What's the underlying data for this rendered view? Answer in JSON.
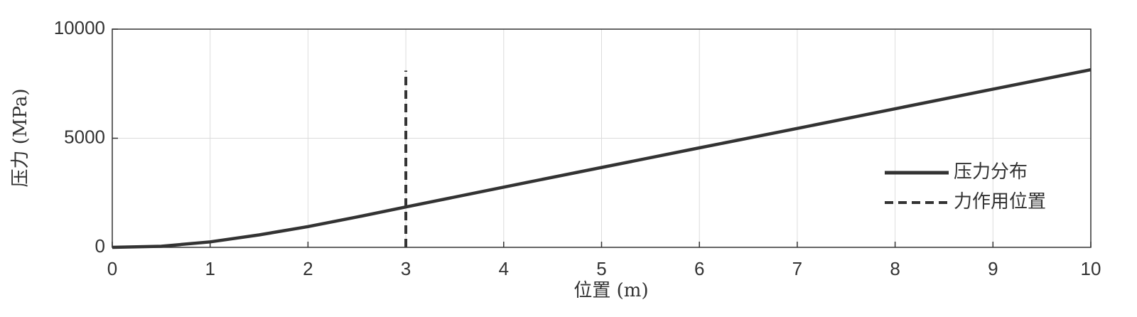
{
  "chart_data": {
    "type": "line",
    "xlabel": "位置 (m)",
    "ylabel": "压力  (MPa)",
    "xlim": [
      0,
      10
    ],
    "xticks": [
      0,
      1,
      2,
      3,
      4,
      5,
      6,
      7,
      8,
      9,
      10
    ],
    "ylim": [
      0,
      10000
    ],
    "yticks": [
      0,
      5000,
      10000
    ],
    "grid": true,
    "legend": "right",
    "series": [
      {
        "name": "压力分布",
        "color": "#333333",
        "dash": false,
        "x": [
          0,
          0.5,
          1,
          1.5,
          2,
          2.5,
          3,
          4,
          5,
          6,
          7,
          8,
          9,
          10
        ],
        "values": [
          0,
          50,
          250,
          570,
          950,
          1390,
          1850,
          2760,
          3660,
          4560,
          5450,
          6350,
          7250,
          8140
        ]
      },
      {
        "name": "力作用位置",
        "color": "#333333",
        "dash": true,
        "x": [
          3,
          3
        ],
        "values": [
          0,
          8100
        ]
      }
    ]
  }
}
